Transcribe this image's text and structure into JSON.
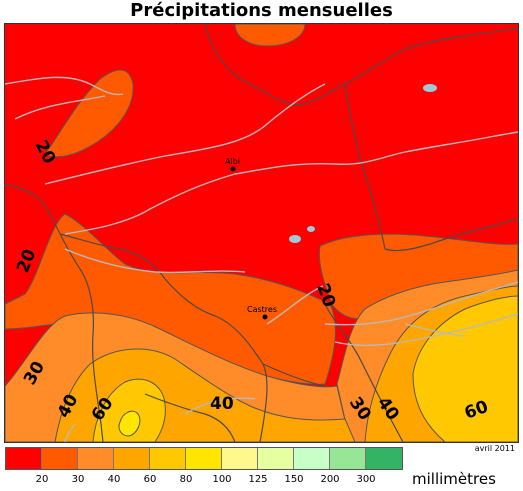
{
  "title": "Précipitations mensuelles",
  "date_label": "avril 2011",
  "unit_label": "millimètres",
  "legend": {
    "colors": [
      "#ff0000",
      "#ff5a00",
      "#ff8c28",
      "#ffa500",
      "#ffc800",
      "#ffe600",
      "#fff98c",
      "#e6ffa0",
      "#c8ffc8",
      "#96e696",
      "#32b464"
    ],
    "ticks": [
      "20",
      "30",
      "40",
      "60",
      "80",
      "100",
      "125",
      "150",
      "200",
      "300"
    ]
  },
  "cities": {
    "albi": "Albi",
    "castres": "Castres"
  },
  "isolines": {
    "c20_a": "20",
    "c20_b": "20",
    "c20_c": "20",
    "c30_a": "30",
    "c30_b": "30",
    "c40_a": "40",
    "c40_b": "40",
    "c40_c": "40",
    "c60_a": "60",
    "c60_b": "60"
  }
}
